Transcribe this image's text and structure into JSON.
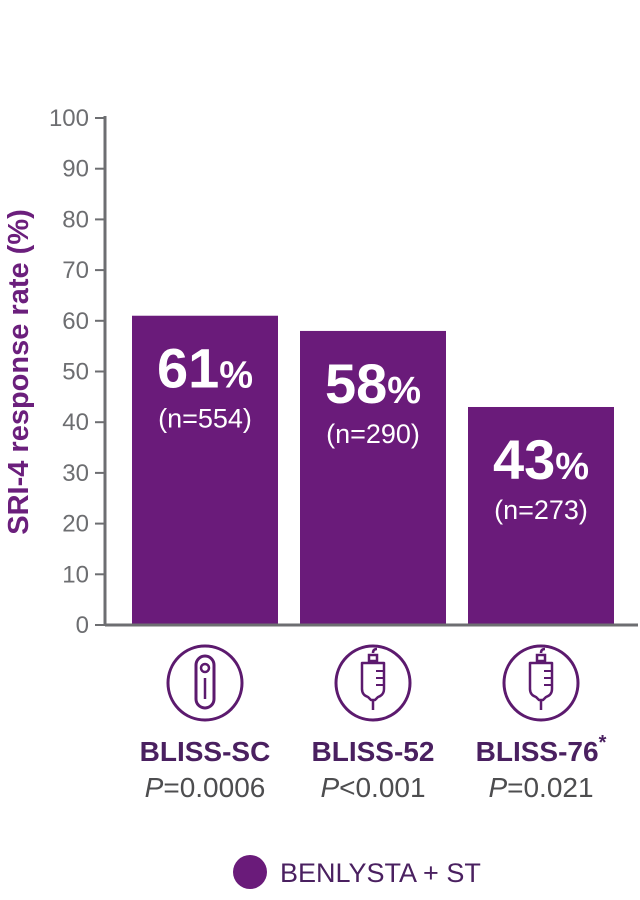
{
  "chart_data": {
    "type": "bar",
    "ylabel": "SRI-4 response rate (%)",
    "ylim": [
      0,
      100
    ],
    "yticks": [
      0,
      10,
      20,
      30,
      40,
      50,
      60,
      70,
      80,
      90,
      100
    ],
    "grid": false,
    "categories": [
      "BLISS-SC",
      "BLISS-52",
      "BLISS-76"
    ],
    "category_marks": [
      "",
      "",
      "*"
    ],
    "p_prefix": [
      "P",
      "P",
      "P"
    ],
    "p_values": [
      "=0.0006",
      "<0.001",
      "=0.021"
    ],
    "category_icons": [
      "autoinjector-icon",
      "iv-bag-icon",
      "iv-bag-icon"
    ],
    "series": [
      {
        "name": "BENLYSTA + ST",
        "values": [
          61,
          58,
          43
        ],
        "value_labels": [
          "61",
          "58",
          "43"
        ],
        "value_suffix": "%",
        "n_labels": [
          "(n=554)",
          "(n=290)",
          "(n=273)"
        ]
      }
    ],
    "legend_position": "bottom-center",
    "colors": {
      "bar": "#6a1b7a",
      "axis": "#6d6e71",
      "icon": "#5c1a6e",
      "ylabel": "#6b1f7c"
    }
  }
}
